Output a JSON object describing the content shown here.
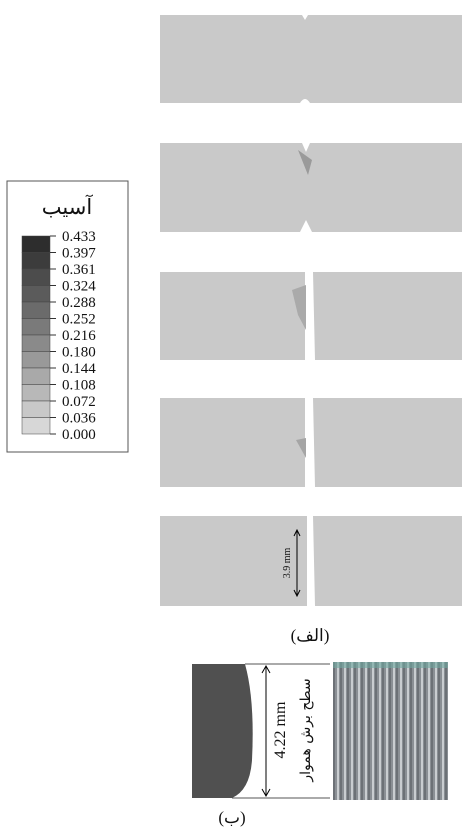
{
  "legend": {
    "title": "آسیب",
    "labels": [
      "0.433",
      "0.397",
      "0.361",
      "0.324",
      "0.288",
      "0.252",
      "0.216",
      "0.180",
      "0.144",
      "0.108",
      "0.072",
      "0.036",
      "0.000"
    ]
  },
  "panel_a": {
    "dimension": "3.9 mm",
    "caption": "(الف)"
  },
  "panel_b": {
    "dimension": "4.22 mm",
    "surface_label": "سطح برش هموار",
    "caption": "(ب)"
  }
}
